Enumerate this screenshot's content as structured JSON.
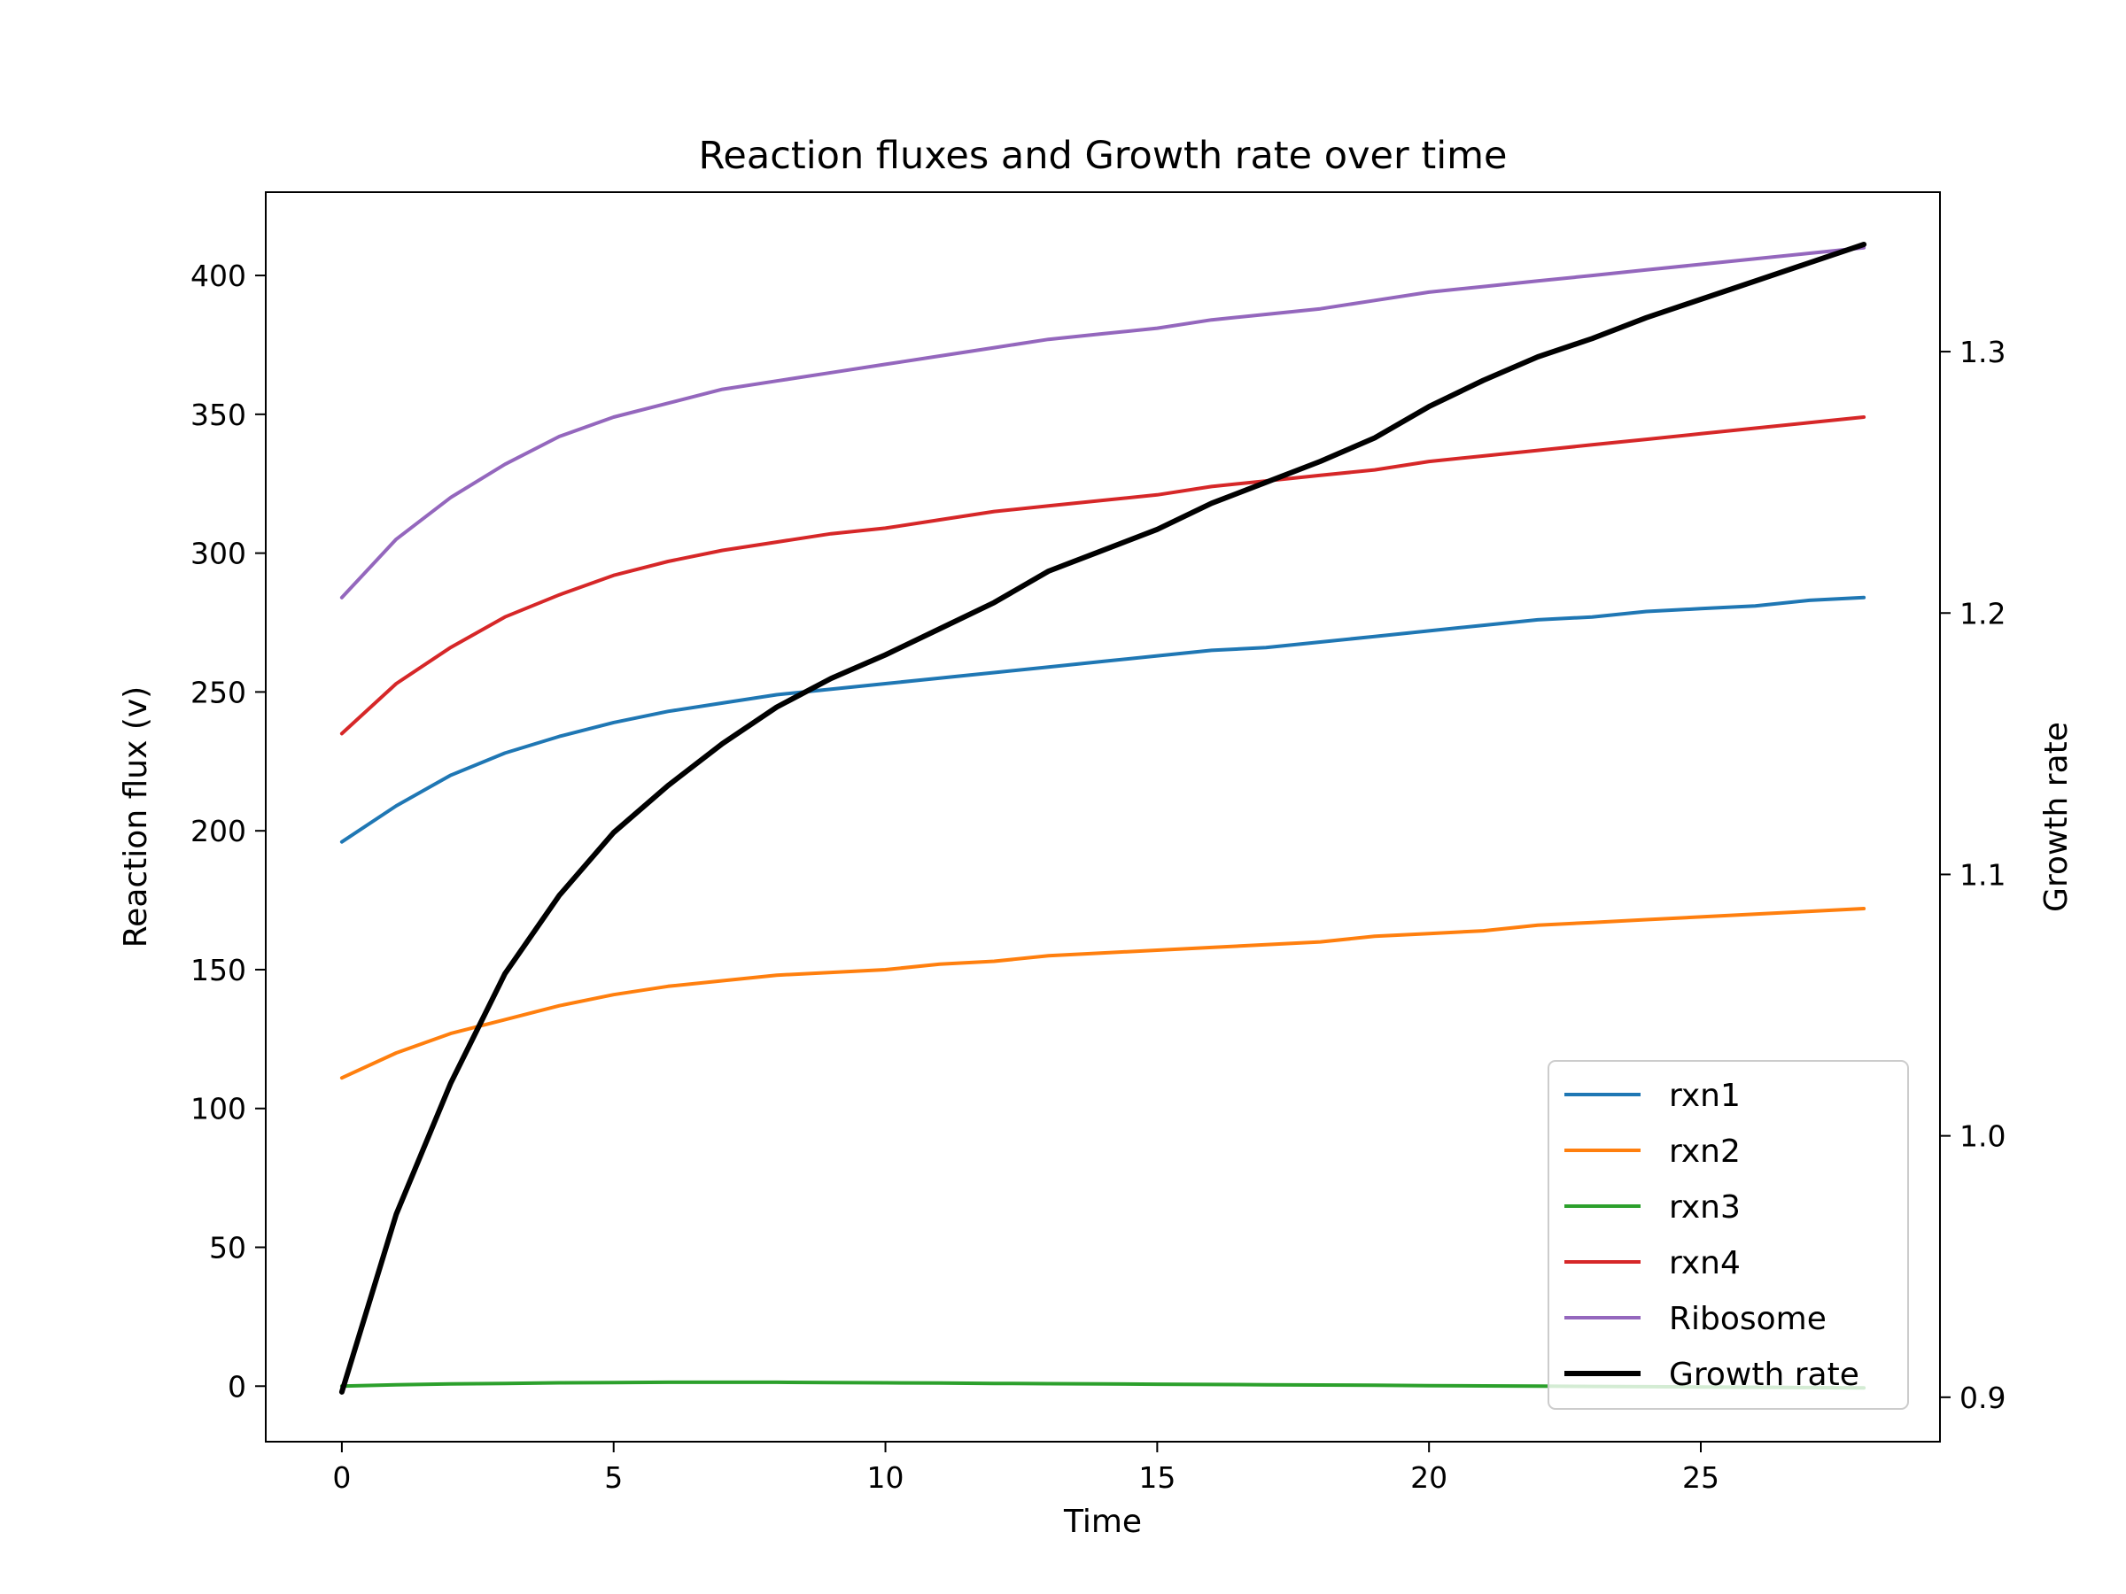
{
  "chart_data": {
    "type": "line",
    "title": "Reaction fluxes and Growth rate over time",
    "xlabel": "Time",
    "ylabel": "Reaction flux (v)",
    "y2label": "Growth rate",
    "xlim": [
      -1.4,
      29.4
    ],
    "ylim": [
      -20,
      430
    ],
    "y2lim": [
      0.883,
      1.361
    ],
    "xticks": [
      0,
      5,
      10,
      15,
      20,
      25
    ],
    "yticks": [
      0,
      50,
      100,
      150,
      200,
      250,
      300,
      350,
      400
    ],
    "y2ticks": [
      0.9,
      1.0,
      1.1,
      1.2,
      1.3
    ],
    "y2ticklabels": [
      "0.9",
      "1.0",
      "1.1",
      "1.2",
      "1.3"
    ],
    "legend_position": "lower-right",
    "grid": false,
    "x": [
      0,
      1,
      2,
      3,
      4,
      5,
      6,
      7,
      8,
      9,
      10,
      11,
      12,
      13,
      14,
      15,
      16,
      17,
      18,
      19,
      20,
      21,
      22,
      23,
      24,
      25,
      26,
      27,
      28
    ],
    "series": [
      {
        "name": "rxn1",
        "axis": "left",
        "color": "#1f77b4",
        "values": [
          196,
          209,
          220,
          228,
          234,
          239,
          243,
          246,
          249,
          251,
          253,
          255,
          257,
          259,
          261,
          263,
          265,
          266,
          268,
          270,
          272,
          274,
          276,
          277,
          279,
          280,
          281,
          283,
          284
        ]
      },
      {
        "name": "rxn2",
        "axis": "left",
        "color": "#ff7f0e",
        "values": [
          111,
          120,
          127,
          132,
          137,
          141,
          144,
          146,
          148,
          149,
          150,
          152,
          153,
          155,
          156,
          157,
          158,
          159,
          160,
          162,
          163,
          164,
          166,
          167,
          168,
          169,
          170,
          171,
          172
        ]
      },
      {
        "name": "rxn3",
        "axis": "left",
        "color": "#2ca02c",
        "values": [
          0,
          0.5,
          0.8,
          1,
          1.2,
          1.3,
          1.4,
          1.4,
          1.4,
          1.3,
          1.2,
          1.1,
          1,
          0.9,
          0.8,
          0.7,
          0.6,
          0.5,
          0.4,
          0.3,
          0.2,
          0.1,
          0,
          -0.1,
          -0.2,
          -0.3,
          -0.4,
          -0.5,
          -0.6
        ]
      },
      {
        "name": "rxn4",
        "axis": "left",
        "color": "#d62728",
        "values": [
          235,
          253,
          266,
          277,
          285,
          292,
          297,
          301,
          304,
          307,
          309,
          312,
          315,
          317,
          319,
          321,
          324,
          326,
          328,
          330,
          333,
          335,
          337,
          339,
          341,
          343,
          345,
          347,
          349
        ]
      },
      {
        "name": "Ribosome",
        "axis": "left",
        "color": "#9467bd",
        "values": [
          284,
          305,
          320,
          332,
          342,
          349,
          354,
          359,
          362,
          365,
          368,
          371,
          374,
          377,
          379,
          381,
          384,
          386,
          388,
          391,
          394,
          396,
          398,
          400,
          402,
          404,
          406,
          408,
          410
        ]
      },
      {
        "name": "Growth rate",
        "axis": "right",
        "color": "#000000",
        "values": [
          0.902,
          0.97,
          1.02,
          1.062,
          1.092,
          1.116,
          1.134,
          1.15,
          1.164,
          1.175,
          1.184,
          1.194,
          1.204,
          1.216,
          1.224,
          1.232,
          1.242,
          1.25,
          1.258,
          1.267,
          1.279,
          1.289,
          1.298,
          1.305,
          1.313,
          1.32,
          1.327,
          1.334,
          1.341
        ]
      }
    ]
  }
}
